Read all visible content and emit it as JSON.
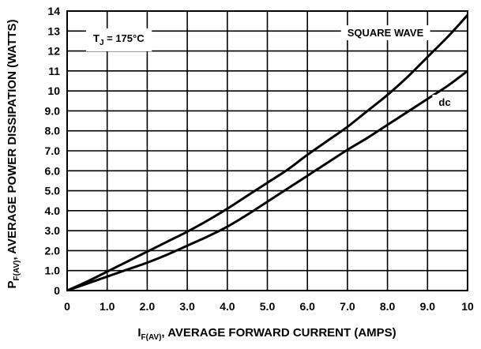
{
  "chart_data": {
    "type": "line",
    "xlabel_main": "I",
    "xlabel_sub": "F(AV)",
    "xlabel_rest": ", AVERAGE FORWARD CURRENT (AMPS)",
    "ylabel_main": "P",
    "ylabel_sub": "F(AV)",
    "ylabel_rest": ", AVERAGE POWER DISSIPATION (WATTS)",
    "xlim": [
      0,
      10
    ],
    "ylim": [
      0,
      14
    ],
    "x_ticks": [
      "0",
      "1.0",
      "2.0",
      "3.0",
      "4.0",
      "5.0",
      "6.0",
      "7.0",
      "8.0",
      "9.0",
      "10"
    ],
    "y_ticks": [
      "0",
      "1.0",
      "2.0",
      "3.0",
      "4.0",
      "5.0",
      "6.0",
      "7.0",
      "8.0",
      "9.0",
      "10",
      "11",
      "12",
      "13",
      "14"
    ],
    "grid": true,
    "annotation_tj_main": "T",
    "annotation_tj_sub": "J",
    "annotation_tj_rest": " = 175°C",
    "series": [
      {
        "name": "SQUARE WAVE",
        "x": [
          0,
          0.5,
          1.0,
          1.5,
          2.0,
          2.5,
          3.0,
          3.5,
          4.0,
          4.5,
          5.0,
          5.5,
          6.0,
          6.5,
          7.0,
          7.5,
          8.0,
          8.5,
          9.0,
          9.5,
          10.0
        ],
        "y": [
          0,
          0.45,
          0.95,
          1.45,
          1.95,
          2.45,
          2.95,
          3.5,
          4.1,
          4.75,
          5.4,
          6.05,
          6.8,
          7.5,
          8.2,
          9.0,
          9.8,
          10.7,
          11.7,
          12.7,
          13.8
        ]
      },
      {
        "name": "dc",
        "x": [
          0,
          0.5,
          1.0,
          1.5,
          2.0,
          2.5,
          3.0,
          3.5,
          4.0,
          4.5,
          5.0,
          5.5,
          6.0,
          6.5,
          7.0,
          7.5,
          8.0,
          8.5,
          9.0,
          9.5,
          10.0
        ],
        "y": [
          0,
          0.35,
          0.7,
          1.05,
          1.4,
          1.8,
          2.25,
          2.7,
          3.2,
          3.8,
          4.45,
          5.1,
          5.75,
          6.4,
          7.05,
          7.65,
          8.3,
          8.95,
          9.6,
          10.25,
          11.0
        ]
      }
    ]
  }
}
